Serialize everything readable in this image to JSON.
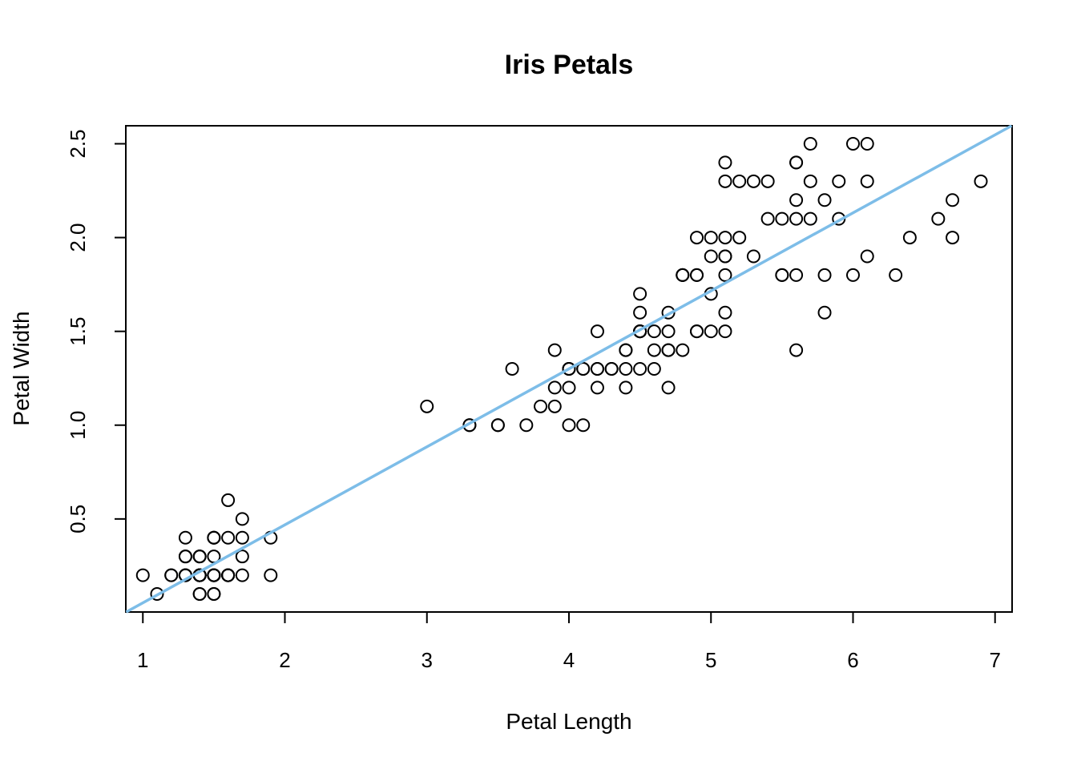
{
  "chart_data": {
    "type": "scatter",
    "title": "Iris Petals",
    "xlabel": "Petal Length",
    "ylabel": "Petal Width",
    "xlim": [
      0.88,
      7.12
    ],
    "ylim": [
      0.004,
      2.596
    ],
    "x_ticks": [
      1,
      2,
      3,
      4,
      5,
      6,
      7
    ],
    "x_tick_labels": [
      "1",
      "2",
      "3",
      "4",
      "5",
      "6",
      "7"
    ],
    "y_ticks": [
      0.5,
      1.0,
      1.5,
      2.0,
      2.5
    ],
    "y_tick_labels": [
      "0.5",
      "1.0",
      "1.5",
      "2.0",
      "2.5"
    ],
    "grid": false,
    "legend": "none",
    "marker": "open-circle",
    "fit_line": {
      "type": "linear",
      "intercept": -0.363,
      "slope": 0.4158,
      "color": "#7dbde8"
    },
    "series": [
      {
        "points": [
          [
            1.4,
            0.2
          ],
          [
            1.4,
            0.2
          ],
          [
            1.3,
            0.2
          ],
          [
            1.5,
            0.2
          ],
          [
            1.4,
            0.2
          ],
          [
            1.7,
            0.4
          ],
          [
            1.4,
            0.3
          ],
          [
            1.5,
            0.2
          ],
          [
            1.4,
            0.2
          ],
          [
            1.5,
            0.1
          ],
          [
            1.5,
            0.2
          ],
          [
            1.6,
            0.2
          ],
          [
            1.4,
            0.1
          ],
          [
            1.1,
            0.1
          ],
          [
            1.2,
            0.2
          ],
          [
            1.5,
            0.4
          ],
          [
            1.3,
            0.4
          ],
          [
            1.4,
            0.3
          ],
          [
            1.7,
            0.3
          ],
          [
            1.5,
            0.3
          ],
          [
            1.7,
            0.2
          ],
          [
            1.5,
            0.4
          ],
          [
            1.0,
            0.2
          ],
          [
            1.7,
            0.5
          ],
          [
            1.9,
            0.2
          ],
          [
            1.6,
            0.2
          ],
          [
            1.6,
            0.4
          ],
          [
            1.5,
            0.2
          ],
          [
            1.4,
            0.2
          ],
          [
            1.6,
            0.2
          ],
          [
            1.6,
            0.2
          ],
          [
            1.5,
            0.4
          ],
          [
            1.5,
            0.1
          ],
          [
            1.4,
            0.2
          ],
          [
            1.5,
            0.2
          ],
          [
            1.2,
            0.2
          ],
          [
            1.3,
            0.2
          ],
          [
            1.4,
            0.1
          ],
          [
            1.3,
            0.2
          ],
          [
            1.5,
            0.2
          ],
          [
            1.3,
            0.3
          ],
          [
            1.3,
            0.3
          ],
          [
            1.3,
            0.2
          ],
          [
            1.6,
            0.6
          ],
          [
            1.9,
            0.4
          ],
          [
            1.4,
            0.3
          ],
          [
            1.6,
            0.2
          ],
          [
            1.4,
            0.2
          ],
          [
            1.5,
            0.2
          ],
          [
            1.4,
            0.2
          ],
          [
            4.7,
            1.4
          ],
          [
            4.5,
            1.5
          ],
          [
            4.9,
            1.5
          ],
          [
            4.0,
            1.3
          ],
          [
            4.6,
            1.5
          ],
          [
            4.5,
            1.3
          ],
          [
            4.7,
            1.6
          ],
          [
            3.3,
            1.0
          ],
          [
            4.6,
            1.3
          ],
          [
            3.9,
            1.4
          ],
          [
            3.5,
            1.0
          ],
          [
            4.2,
            1.5
          ],
          [
            4.0,
            1.0
          ],
          [
            4.7,
            1.4
          ],
          [
            3.6,
            1.3
          ],
          [
            4.4,
            1.4
          ],
          [
            4.5,
            1.5
          ],
          [
            4.1,
            1.0
          ],
          [
            4.5,
            1.5
          ],
          [
            3.9,
            1.1
          ],
          [
            4.8,
            1.8
          ],
          [
            4.0,
            1.3
          ],
          [
            4.9,
            1.5
          ],
          [
            4.7,
            1.2
          ],
          [
            4.3,
            1.3
          ],
          [
            4.4,
            1.4
          ],
          [
            4.8,
            1.4
          ],
          [
            5.0,
            1.7
          ],
          [
            4.5,
            1.5
          ],
          [
            3.5,
            1.0
          ],
          [
            3.8,
            1.1
          ],
          [
            3.7,
            1.0
          ],
          [
            3.9,
            1.2
          ],
          [
            5.1,
            1.6
          ],
          [
            4.5,
            1.5
          ],
          [
            4.5,
            1.6
          ],
          [
            4.7,
            1.5
          ],
          [
            4.4,
            1.3
          ],
          [
            4.1,
            1.3
          ],
          [
            4.0,
            1.3
          ],
          [
            4.4,
            1.2
          ],
          [
            4.6,
            1.4
          ],
          [
            4.0,
            1.2
          ],
          [
            3.3,
            1.0
          ],
          [
            4.2,
            1.3
          ],
          [
            4.2,
            1.2
          ],
          [
            4.2,
            1.3
          ],
          [
            4.3,
            1.3
          ],
          [
            3.0,
            1.1
          ],
          [
            4.1,
            1.3
          ],
          [
            6.0,
            2.5
          ],
          [
            5.1,
            1.9
          ],
          [
            5.9,
            2.1
          ],
          [
            5.6,
            1.8
          ],
          [
            5.8,
            2.2
          ],
          [
            6.6,
            2.1
          ],
          [
            4.5,
            1.7
          ],
          [
            6.3,
            1.8
          ],
          [
            5.8,
            1.8
          ],
          [
            6.1,
            2.5
          ],
          [
            5.1,
            2.0
          ],
          [
            5.3,
            1.9
          ],
          [
            5.5,
            2.1
          ],
          [
            5.0,
            2.0
          ],
          [
            5.1,
            2.4
          ],
          [
            5.3,
            2.3
          ],
          [
            5.5,
            1.8
          ],
          [
            6.7,
            2.2
          ],
          [
            6.9,
            2.3
          ],
          [
            5.0,
            1.5
          ],
          [
            5.7,
            2.3
          ],
          [
            4.9,
            2.0
          ],
          [
            6.7,
            2.0
          ],
          [
            4.9,
            1.8
          ],
          [
            5.7,
            2.1
          ],
          [
            6.0,
            1.8
          ],
          [
            4.8,
            1.8
          ],
          [
            4.9,
            1.8
          ],
          [
            5.6,
            2.1
          ],
          [
            5.8,
            1.6
          ],
          [
            6.1,
            1.9
          ],
          [
            6.4,
            2.0
          ],
          [
            5.6,
            2.2
          ],
          [
            5.1,
            1.5
          ],
          [
            5.6,
            1.4
          ],
          [
            6.1,
            2.3
          ],
          [
            5.6,
            2.4
          ],
          [
            5.5,
            1.8
          ],
          [
            4.8,
            1.8
          ],
          [
            5.4,
            2.1
          ],
          [
            5.6,
            2.4
          ],
          [
            5.1,
            2.3
          ],
          [
            5.1,
            1.9
          ],
          [
            5.9,
            2.3
          ],
          [
            5.7,
            2.5
          ],
          [
            5.2,
            2.3
          ],
          [
            5.0,
            1.9
          ],
          [
            5.2,
            2.0
          ],
          [
            5.4,
            2.3
          ],
          [
            5.1,
            1.8
          ]
        ]
      }
    ]
  }
}
